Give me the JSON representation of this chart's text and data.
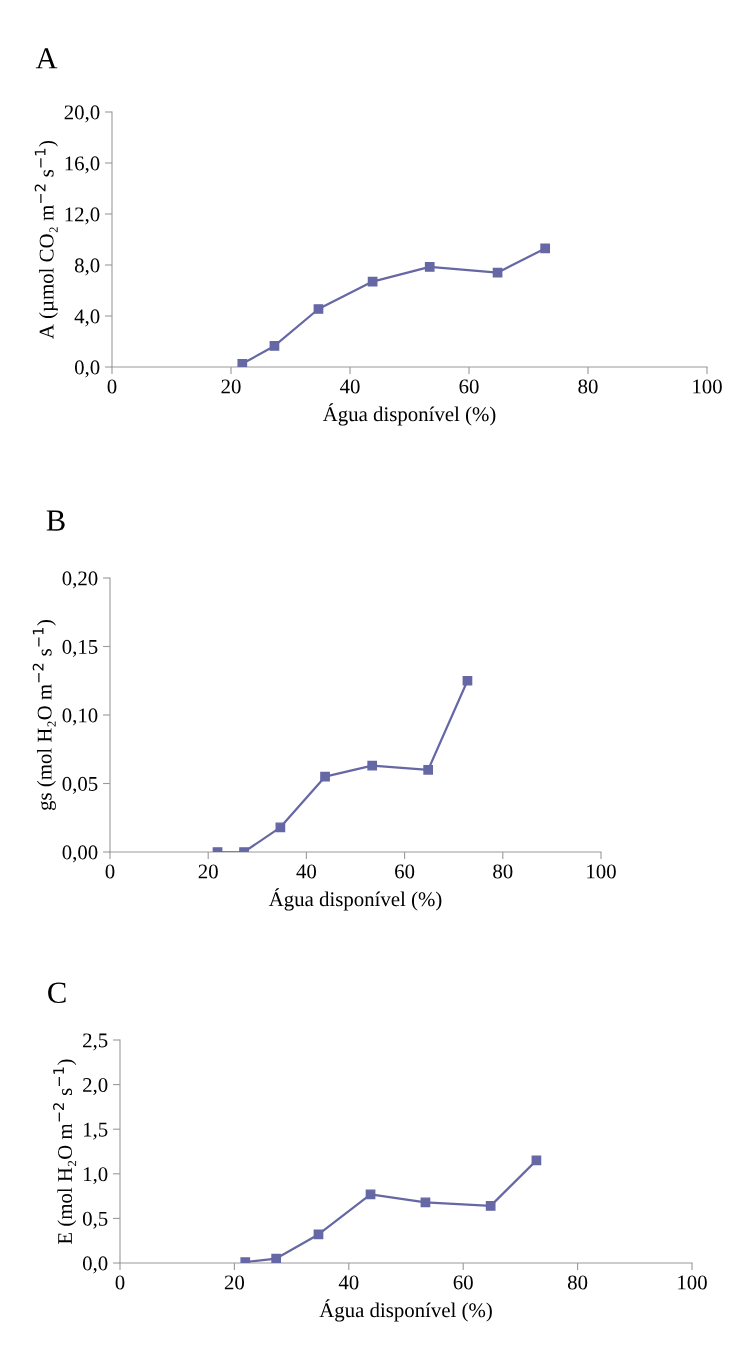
{
  "chart_data": [
    {
      "type": "line",
      "title": "A",
      "xlabel": "Água disponível (%)",
      "ylabel": "A (µmol CO₂ m$^{−2}$ s$^{−1}$)",
      "x": [
        21.9,
        27.3,
        34.7,
        43.8,
        53.4,
        64.8,
        72.8
      ],
      "series": [
        {
          "color": "#6667a5",
          "values": [
            0.25,
            1.65,
            4.55,
            6.7,
            7.85,
            7.4,
            9.3
          ]
        }
      ],
      "xlim": [
        0,
        100
      ],
      "xticks": [
        0,
        20,
        40,
        60,
        80,
        100
      ],
      "ylim": [
        0,
        20
      ],
      "yticks": [
        {
          "value": 0,
          "label": "0,0"
        },
        {
          "value": 4,
          "label": "4,0"
        },
        {
          "value": 8,
          "label": "8,0"
        },
        {
          "value": 12,
          "label": "12,0"
        },
        {
          "value": 16,
          "label": "16,0"
        },
        {
          "value": 20,
          "label": "20,0"
        }
      ],
      "marker": "square",
      "line_style": "solid",
      "grid": false,
      "legend": false
    },
    {
      "type": "line",
      "title": "B",
      "xlabel": "Água disponível (%)",
      "ylabel": "gs (mol H₂O m$^{−2}$ s$^{−1}$)",
      "x": [
        21.9,
        27.3,
        34.7,
        43.8,
        53.4,
        64.8,
        72.8
      ],
      "series": [
        {
          "color": "#6667a5",
          "values": [
            0.0,
            0.0,
            0.018,
            0.055,
            0.063,
            0.06,
            0.125
          ]
        }
      ],
      "xlim": [
        0,
        100
      ],
      "xticks": [
        0,
        20,
        40,
        60,
        80,
        100
      ],
      "ylim": [
        0,
        0.2
      ],
      "yticks": [
        {
          "value": 0,
          "label": "0,00"
        },
        {
          "value": 0.05,
          "label": "0,05"
        },
        {
          "value": 0.1,
          "label": "0,10"
        },
        {
          "value": 0.15,
          "label": "0,15"
        },
        {
          "value": 0.2,
          "label": "0,20"
        }
      ],
      "marker": "square",
      "line_style": "solid",
      "grid": false,
      "legend": false
    },
    {
      "type": "line",
      "title": "C",
      "xlabel": "Água disponível (%)",
      "ylabel": "E (mol H₂O m$^{−2}$ s$^{−1}$)",
      "x": [
        21.9,
        27.3,
        34.7,
        43.8,
        53.4,
        64.8,
        72.8
      ],
      "series": [
        {
          "color": "#6667a5",
          "values": [
            0.01,
            0.05,
            0.32,
            0.77,
            0.68,
            0.64,
            1.15
          ]
        }
      ],
      "xlim": [
        0,
        100
      ],
      "xticks": [
        0,
        20,
        40,
        60,
        80,
        100
      ],
      "ylim": [
        0,
        2.5
      ],
      "yticks": [
        {
          "value": 0,
          "label": "0,0"
        },
        {
          "value": 0.5,
          "label": "0,5"
        },
        {
          "value": 1,
          "label": "1,0"
        },
        {
          "value": 1.5,
          "label": "1,5"
        },
        {
          "value": 2,
          "label": "2,0"
        },
        {
          "value": 2.5,
          "label": "2,5"
        }
      ],
      "marker": "square",
      "line_style": "solid",
      "grid": false,
      "legend": false
    }
  ]
}
